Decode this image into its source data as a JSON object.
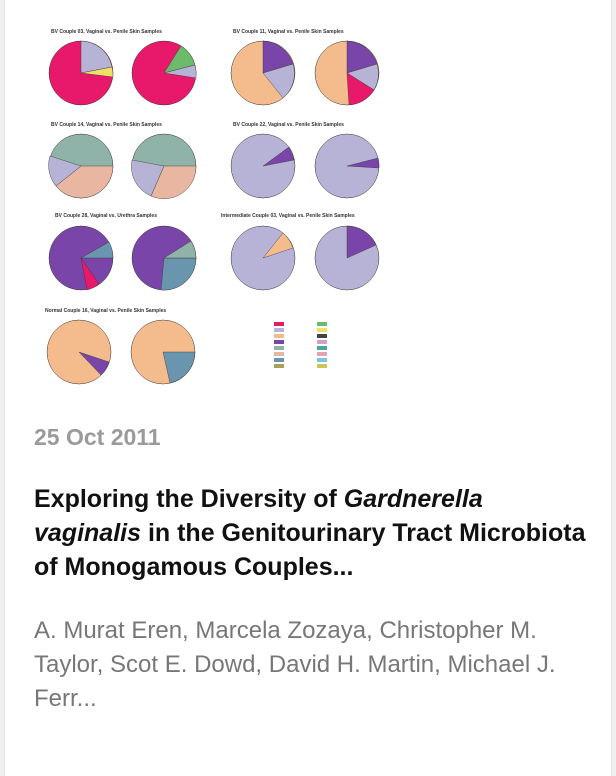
{
  "card": {
    "figure": {
      "panels": [
        {
          "title": "BV Couple 03, Vaginal vs. Penile Skin Samples"
        },
        {
          "title": "BV Couple 11, Vaginal vs. Penile Skin Samples"
        },
        {
          "title": "BV Couple 14, Vaginal vs. Penile Skin Samples"
        },
        {
          "title": "BV Couple 22, Vaginal vs. Penile Skin Samples"
        },
        {
          "title": "BV Couple 28, Vaginal vs. Urethra Samples"
        },
        {
          "title": "Intermediate Couple 03, Vaginal vs. Penile Skin Samples"
        },
        {
          "title": "Normal Couple 16, Vaginal vs. Penile Skin Samples"
        }
      ],
      "palette": {
        "magenta": "#e8196b",
        "lavender": "#b7b3d6",
        "peach": "#f4bc8c",
        "purple": "#7a45a8",
        "teal": "#8fb3a9",
        "salmon": "#e9b6a1",
        "steel": "#6a95ae",
        "olive": "#a7a15a",
        "green": "#6bbb6b"
      }
    },
    "date": "25 Oct 2011",
    "title_part1": "Exploring the Diversity of ",
    "title_italic": "Gardnerella vaginalis",
    "title_part2": " in the Genitourinary Tract Microbiota of Monogamous Couples...",
    "authors": "A. Murat Eren, Marcela Zozaya, Christopher M. Taylor, Scot E. Dowd, David H. Martin, Michael J. Ferr..."
  }
}
